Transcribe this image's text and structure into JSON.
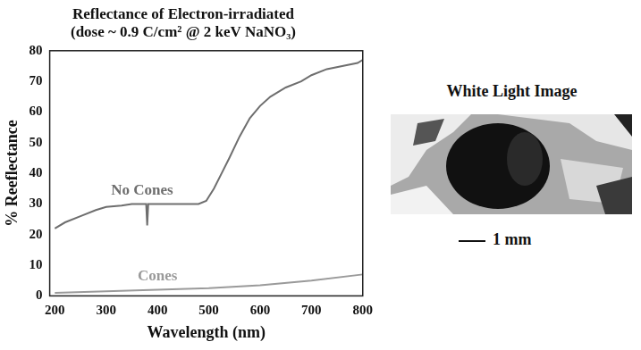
{
  "chart_data": {
    "type": "line",
    "title": [
      "Reflectance of Electron-irradiated",
      "(dose ~ 0.9 C/cm² @ 2 keV NaNO₃)"
    ],
    "x_label": "Wavelength (nm)",
    "y_label": "% Reeflectance",
    "xlim": [
      190,
      800
    ],
    "xticks": [
      200,
      300,
      400,
      500,
      600,
      700,
      800
    ],
    "ylim": [
      0,
      80
    ],
    "yticks": [
      0,
      10,
      20,
      30,
      40,
      50,
      60,
      70,
      80
    ],
    "grid": false,
    "series": [
      {
        "name": "No Cones",
        "color": "#6e6e6e",
        "x": [
          200,
          220,
          250,
          280,
          300,
          330,
          350,
          370,
          378,
          380,
          382,
          390,
          420,
          450,
          480,
          495,
          510,
          525,
          540,
          560,
          580,
          600,
          620,
          650,
          680,
          700,
          730,
          760,
          790,
          800
        ],
        "values": [
          22,
          24,
          26,
          28,
          29,
          29.5,
          30,
          30,
          30,
          23,
          30,
          30,
          30,
          30,
          30,
          31,
          35,
          40,
          45,
          52,
          58,
          62,
          65,
          68,
          70,
          72,
          74,
          75,
          76,
          77
        ]
      },
      {
        "name": "Cones",
        "color": "#9a9a9a",
        "x": [
          200,
          300,
          400,
          500,
          600,
          700,
          800
        ],
        "values": [
          1,
          1.5,
          2,
          2.5,
          3.5,
          5,
          7
        ]
      }
    ]
  },
  "image_panel": {
    "title": "White Light Image",
    "scale_bar": "1 mm"
  }
}
